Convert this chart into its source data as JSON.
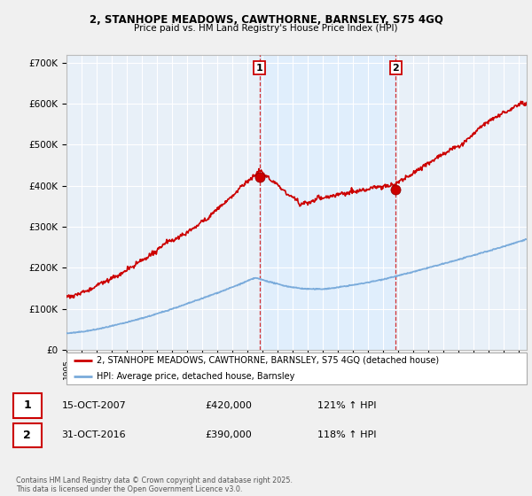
{
  "title1": "2, STANHOPE MEADOWS, CAWTHORNE, BARNSLEY, S75 4GQ",
  "title2": "Price paid vs. HM Land Registry's House Price Index (HPI)",
  "ylim": [
    0,
    720000
  ],
  "yticks": [
    0,
    100000,
    200000,
    300000,
    400000,
    500000,
    600000,
    700000
  ],
  "ytick_labels": [
    "£0",
    "£100K",
    "£200K",
    "£300K",
    "£400K",
    "£500K",
    "£600K",
    "£700K"
  ],
  "sale1": {
    "date_num": 2007.79,
    "price": 420000,
    "label": "1",
    "date_str": "15-OCT-2007",
    "price_str": "£420,000",
    "hpi_pct": "121% ↑ HPI"
  },
  "sale2": {
    "date_num": 2016.83,
    "price": 390000,
    "label": "2",
    "date_str": "31-OCT-2016",
    "price_str": "£390,000",
    "hpi_pct": "118% ↑ HPI"
  },
  "legend_property": "2, STANHOPE MEADOWS, CAWTHORNE, BARNSLEY, S75 4GQ (detached house)",
  "legend_hpi": "HPI: Average price, detached house, Barnsley",
  "footnote": "Contains HM Land Registry data © Crown copyright and database right 2025.\nThis data is licensed under the Open Government Licence v3.0.",
  "property_color": "#cc0000",
  "hpi_color": "#7aabdb",
  "shade_color": "#ddeeff",
  "background_color": "#f0f0f0",
  "plot_bg_color": "#e8f0f8",
  "grid_color": "#ffffff",
  "vline_color": "#cc0000",
  "xmin": 1995,
  "xmax": 2025.5
}
